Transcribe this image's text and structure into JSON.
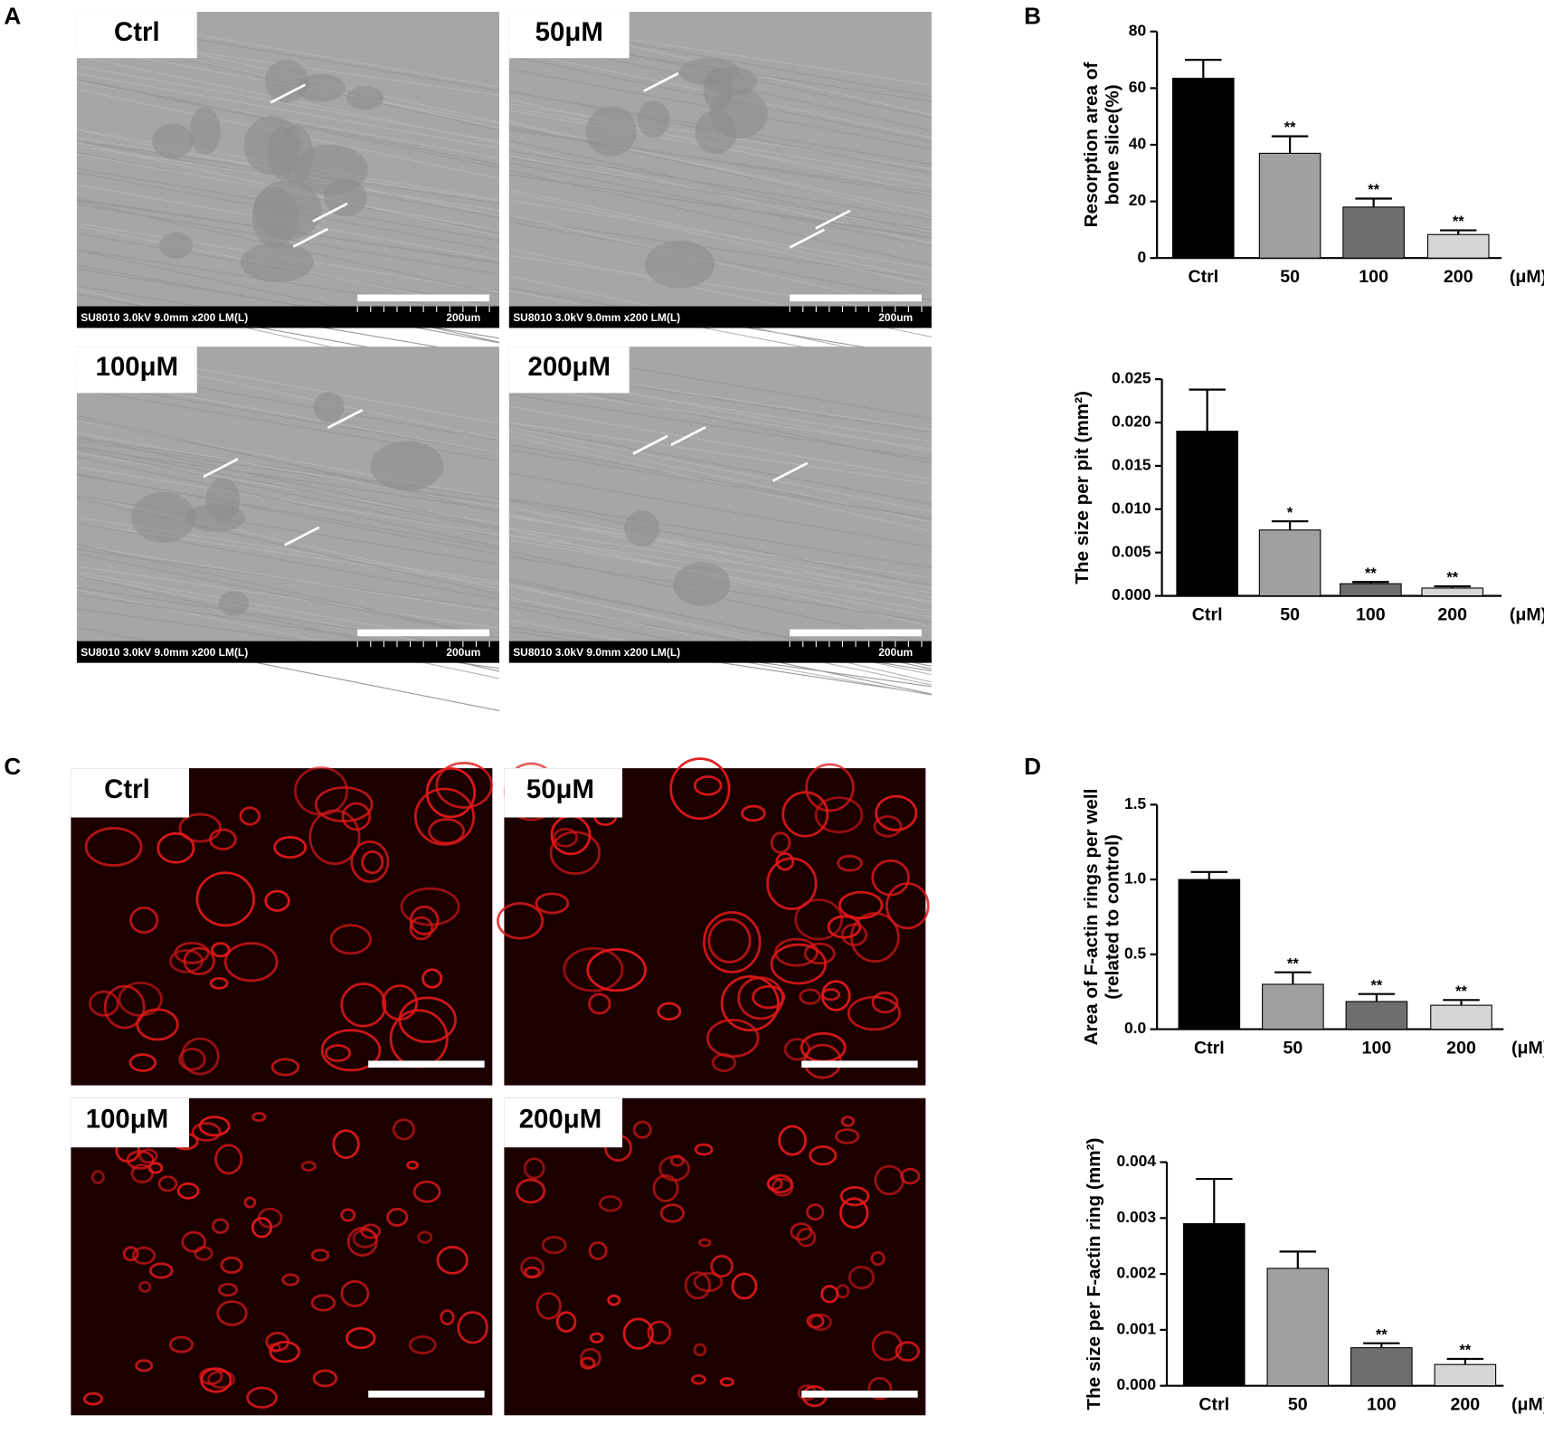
{
  "panels": {
    "A": {
      "label": "A",
      "images": [
        {
          "label": "Ctrl",
          "caption": "SU8010 3.0kV 9.0mm x200 LM(L)",
          "scale": "200um"
        },
        {
          "label": "50μM",
          "caption": "SU8010 3.0kV 9.0mm x200 LM(L)",
          "scale": "200um"
        },
        {
          "label": "100μM",
          "caption": "SU8010 3.0kV 9.0mm x200 LM(L)",
          "scale": "200um"
        },
        {
          "label": "200μM",
          "caption": "SU8010 3.0kV 9.0mm x200 LM(L)",
          "scale": "200um"
        }
      ]
    },
    "B": {
      "label": "B"
    },
    "C": {
      "label": "C",
      "images": [
        {
          "label": "Ctrl"
        },
        {
          "label": "50μM"
        },
        {
          "label": "100μM"
        },
        {
          "label": "200μM"
        }
      ]
    },
    "D": {
      "label": "D"
    }
  },
  "chart_data": [
    {
      "type": "bar",
      "ylabel": [
        "Resorption area of",
        "bone slice(%)"
      ],
      "categories": [
        "Ctrl",
        "50",
        "100",
        "200"
      ],
      "unit": "(μM)",
      "values": [
        63.5,
        37,
        18,
        8.3
      ],
      "errors": [
        6.5,
        6,
        3,
        1.5
      ],
      "annotations": [
        null,
        "**",
        "**",
        "**"
      ],
      "colors": [
        "#000000",
        "#a0a0a3",
        "#6e6e6e",
        "#d6d6d6"
      ],
      "ylim": [
        0,
        80
      ],
      "yticks": [
        0,
        20,
        40,
        60,
        80
      ]
    },
    {
      "type": "bar",
      "ylabel": [
        "The size per pit (mm²)"
      ],
      "categories": [
        "Ctrl",
        "50",
        "100",
        "200"
      ],
      "unit": "(μM)",
      "values": [
        0.019,
        0.0076,
        0.0014,
        0.0009
      ],
      "errors": [
        0.0048,
        0.001,
        0.0002,
        0.0002
      ],
      "annotations": [
        null,
        "*",
        "**",
        "**"
      ],
      "colors": [
        "#000000",
        "#a0a0a3",
        "#6e6e6e",
        "#d6d6d6"
      ],
      "ylim": [
        0,
        0.025
      ],
      "yticks": [
        {
          "value": 0,
          "label": "0.000"
        },
        {
          "value": 0.005,
          "label": "0.005"
        },
        {
          "value": 0.01,
          "label": "0.010"
        },
        {
          "value": 0.015,
          "label": "0.015"
        },
        {
          "value": 0.02,
          "label": "0.020"
        },
        {
          "value": 0.025,
          "label": "0.025"
        }
      ]
    },
    {
      "type": "bar",
      "ylabel": [
        "Area of F-actin rings per well",
        "(related to control)"
      ],
      "categories": [
        "Ctrl",
        "50",
        "100",
        "200"
      ],
      "unit": "(μM)",
      "values": [
        1.0,
        0.3,
        0.185,
        0.16
      ],
      "errors": [
        0.05,
        0.08,
        0.05,
        0.035
      ],
      "annotations": [
        null,
        "**",
        "**",
        "**"
      ],
      "colors": [
        "#000000",
        "#a0a0a3",
        "#6e6e6e",
        "#d6d6d6"
      ],
      "ylim": [
        0,
        1.5
      ],
      "yticks": [
        {
          "value": 0,
          "label": "0.0"
        },
        {
          "value": 0.5,
          "label": "0.5"
        },
        {
          "value": 1.0,
          "label": "1.0"
        },
        {
          "value": 1.5,
          "label": "1.5"
        }
      ]
    },
    {
      "type": "bar",
      "ylabel": [
        "The size per F-actin ring (mm²)"
      ],
      "categories": [
        "Ctrl",
        "50",
        "100",
        "200"
      ],
      "unit": "(μM)",
      "values": [
        0.0029,
        0.0021,
        0.00068,
        0.00038
      ],
      "errors": [
        0.0008,
        0.0003,
        8e-05,
        0.0001
      ],
      "annotations": [
        null,
        null,
        "**",
        "**"
      ],
      "colors": [
        "#000000",
        "#a0a0a3",
        "#6e6e6e",
        "#d6d6d6"
      ],
      "ylim": [
        0,
        0.004
      ],
      "yticks": [
        {
          "value": 0,
          "label": "0.000"
        },
        {
          "value": 0.001,
          "label": "0.001"
        },
        {
          "value": 0.002,
          "label": "0.002"
        },
        {
          "value": 0.003,
          "label": "0.003"
        },
        {
          "value": 0.004,
          "label": "0.004"
        }
      ]
    }
  ]
}
